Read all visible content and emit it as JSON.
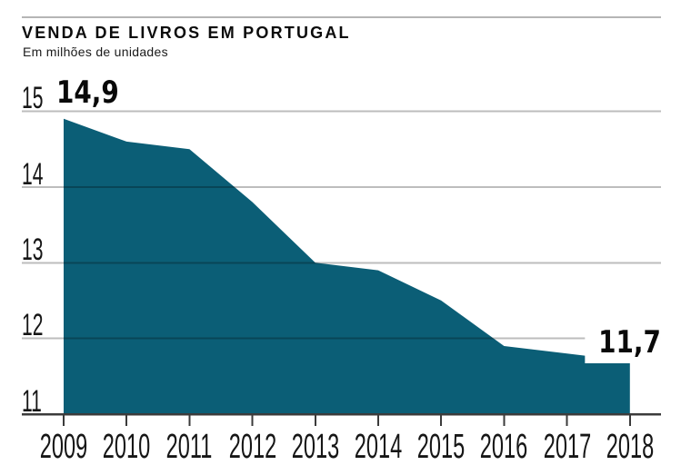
{
  "header": {
    "title": "VENDA DE LIVROS EM PORTUGAL",
    "subtitle": "Em milhões de unidades"
  },
  "chart_data": {
    "type": "area",
    "title": "VENDA DE LIVROS EM PORTUGAL",
    "subtitle": "Em milhões de unidades",
    "xlabel": "",
    "ylabel": "Em milhões de unidades",
    "categories": [
      "2009",
      "2010",
      "2011",
      "2012",
      "2013",
      "2014",
      "2015",
      "2016",
      "2017",
      "2018"
    ],
    "values": [
      14.9,
      14.6,
      14.5,
      13.8,
      13.0,
      12.9,
      12.5,
      11.9,
      11.8,
      11.7
    ],
    "ylim": [
      11,
      15
    ],
    "y_ticks": [
      "15",
      "14",
      "13",
      "12",
      "11"
    ],
    "grid": true,
    "legend": "none",
    "annotations": [
      {
        "target": "2009",
        "text": "14,9"
      },
      {
        "target": "2018",
        "text": "11,7"
      }
    ],
    "colors": {
      "area": "#0b5e76",
      "gridline": "#b8b8b8",
      "axis": "#3b3b3b",
      "text": "#111111"
    }
  }
}
